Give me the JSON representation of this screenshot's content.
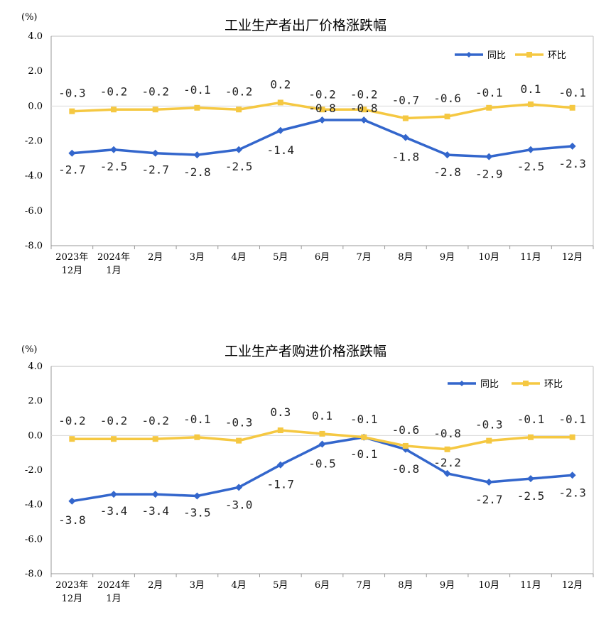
{
  "colors": {
    "yoy": "#3366cc",
    "mom": "#f5c842",
    "axis": "#999999",
    "zero": "#d9d9d9"
  },
  "chart_data": [
    {
      "type": "line",
      "title": "工业生产者出厂价格涨跌幅",
      "ylabel": "(%)",
      "ylim": [
        -8.0,
        4.0
      ],
      "yticks": [
        "4.0",
        "2.0",
        "0.0",
        "-2.0",
        "-4.0",
        "-6.0",
        "-8.0"
      ],
      "ytick_values": [
        4,
        2,
        0,
        -2,
        -4,
        -6,
        -8
      ],
      "categories": [
        [
          "2023年",
          "12月"
        ],
        [
          "2024年",
          "1月"
        ],
        [
          "2月"
        ],
        [
          "3月"
        ],
        [
          "4月"
        ],
        [
          "5月"
        ],
        [
          "6月"
        ],
        [
          "7月"
        ],
        [
          "8月"
        ],
        [
          "9月"
        ],
        [
          "10月"
        ],
        [
          "11月"
        ],
        [
          "12月"
        ]
      ],
      "legend_position": "top-right",
      "series": [
        {
          "name": "同比",
          "color": "#3366cc",
          "marker": "diamond",
          "values": [
            -2.7,
            -2.5,
            -2.7,
            -2.8,
            -2.5,
            -1.4,
            -0.8,
            -0.8,
            -1.8,
            -2.8,
            -2.9,
            -2.5,
            -2.3
          ],
          "labels": [
            "-2.7",
            "-2.5",
            "-2.7",
            "-2.8",
            "-2.5",
            "-1.4",
            "-0.8",
            "-0.8",
            "-1.8",
            "-2.8",
            "-2.9",
            "-2.5",
            "-2.3"
          ]
        },
        {
          "name": "环比",
          "color": "#f5c842",
          "marker": "square",
          "values": [
            -0.3,
            -0.2,
            -0.2,
            -0.1,
            -0.2,
            0.2,
            -0.2,
            -0.2,
            -0.7,
            -0.6,
            -0.1,
            0.1,
            -0.1
          ],
          "labels": [
            "-0.3",
            "-0.2",
            "-0.2",
            "-0.1",
            "-0.2",
            "0.2",
            "-0.2",
            "-0.2",
            "-0.7",
            "-0.6",
            "-0.1",
            "0.1",
            "-0.1"
          ]
        }
      ]
    },
    {
      "type": "line",
      "title": "工业生产者购进价格涨跌幅",
      "ylabel": "(%)",
      "ylim": [
        -8.0,
        4.0
      ],
      "yticks": [
        "4.0",
        "2.0",
        "0.0",
        "-2.0",
        "-4.0",
        "-6.0",
        "-8.0"
      ],
      "ytick_values": [
        4,
        2,
        0,
        -2,
        -4,
        -6,
        -8
      ],
      "categories": [
        [
          "2023年",
          "12月"
        ],
        [
          "2024年",
          "1月"
        ],
        [
          "2月"
        ],
        [
          "3月"
        ],
        [
          "4月"
        ],
        [
          "5月"
        ],
        [
          "6月"
        ],
        [
          "7月"
        ],
        [
          "8月"
        ],
        [
          "9月"
        ],
        [
          "10月"
        ],
        [
          "11月"
        ],
        [
          "12月"
        ]
      ],
      "legend_position": "top-right",
      "series": [
        {
          "name": "同比",
          "color": "#3366cc",
          "marker": "diamond",
          "values": [
            -3.8,
            -3.4,
            -3.4,
            -3.5,
            -3.0,
            -1.7,
            -0.5,
            -0.1,
            -0.8,
            -2.2,
            -2.7,
            -2.5,
            -2.3
          ],
          "labels": [
            "-3.8",
            "-3.4",
            "-3.4",
            "-3.5",
            "-3.0",
            "-1.7",
            "-0.5",
            "-0.1",
            "-0.8",
            "-2.2",
            "-2.7",
            "-2.5",
            "-2.3"
          ]
        },
        {
          "name": "环比",
          "color": "#f5c842",
          "marker": "square",
          "values": [
            -0.2,
            -0.2,
            -0.2,
            -0.1,
            -0.3,
            0.3,
            0.1,
            -0.1,
            -0.6,
            -0.8,
            -0.3,
            -0.1,
            -0.1
          ],
          "labels": [
            "-0.2",
            "-0.2",
            "-0.2",
            "-0.1",
            "-0.3",
            "0.3",
            "0.1",
            "-0.1",
            "-0.6",
            "-0.8",
            "-0.3",
            "-0.1",
            "-0.1"
          ]
        }
      ]
    }
  ]
}
